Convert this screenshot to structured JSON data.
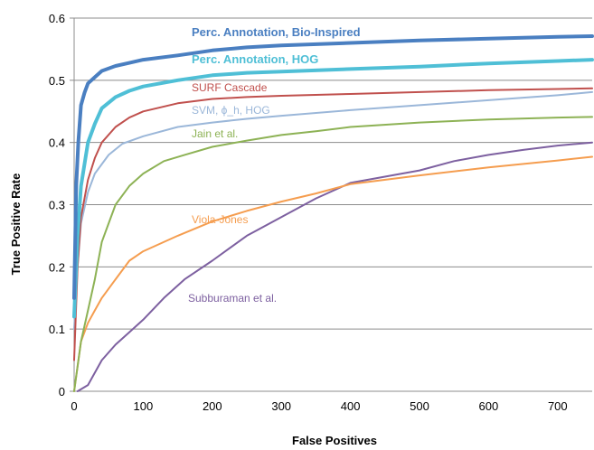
{
  "chart_data": {
    "type": "line",
    "title": "",
    "xlabel": "False Positives",
    "ylabel": "True Positive Rate",
    "xlim": [
      0,
      750
    ],
    "ylim": [
      0,
      0.6
    ],
    "x_ticks": [
      "0",
      "100",
      "200",
      "300",
      "400",
      "500",
      "600",
      "700"
    ],
    "y_ticks": [
      "0",
      "0.1",
      "0.2",
      "0.3",
      "0.4",
      "0.5",
      "0.6"
    ],
    "grid": "horizontal",
    "legend": "inline",
    "series": [
      {
        "name": "Perc. Annotation, Bio-Inspired",
        "color": "#4a7fc1",
        "points": [
          [
            0,
            0.15
          ],
          [
            3,
            0.33
          ],
          [
            6,
            0.4
          ],
          [
            10,
            0.46
          ],
          [
            15,
            0.48
          ],
          [
            20,
            0.495
          ],
          [
            30,
            0.505
          ],
          [
            40,
            0.515
          ],
          [
            60,
            0.523
          ],
          [
            80,
            0.528
          ],
          [
            100,
            0.533
          ],
          [
            150,
            0.54
          ],
          [
            200,
            0.548
          ],
          [
            250,
            0.553
          ],
          [
            300,
            0.556
          ],
          [
            400,
            0.56
          ],
          [
            500,
            0.564
          ],
          [
            600,
            0.567
          ],
          [
            700,
            0.57
          ],
          [
            750,
            0.571
          ]
        ]
      },
      {
        "name": "Perc. Annotation, HOG",
        "color": "#4fbfd6",
        "points": [
          [
            0,
            0.12
          ],
          [
            5,
            0.25
          ],
          [
            10,
            0.33
          ],
          [
            20,
            0.4
          ],
          [
            30,
            0.43
          ],
          [
            40,
            0.455
          ],
          [
            60,
            0.473
          ],
          [
            80,
            0.483
          ],
          [
            100,
            0.49
          ],
          [
            150,
            0.5
          ],
          [
            200,
            0.508
          ],
          [
            250,
            0.512
          ],
          [
            300,
            0.514
          ],
          [
            400,
            0.518
          ],
          [
            500,
            0.522
          ],
          [
            600,
            0.527
          ],
          [
            700,
            0.531
          ],
          [
            750,
            0.533
          ]
        ]
      },
      {
        "name": "SURF Cascade",
        "color": "#c0504d",
        "points": [
          [
            0,
            0.05
          ],
          [
            5,
            0.2
          ],
          [
            10,
            0.28
          ],
          [
            20,
            0.34
          ],
          [
            30,
            0.375
          ],
          [
            40,
            0.4
          ],
          [
            60,
            0.425
          ],
          [
            80,
            0.44
          ],
          [
            100,
            0.45
          ],
          [
            150,
            0.463
          ],
          [
            200,
            0.47
          ],
          [
            250,
            0.473
          ],
          [
            300,
            0.475
          ],
          [
            400,
            0.478
          ],
          [
            500,
            0.481
          ],
          [
            600,
            0.484
          ],
          [
            700,
            0.486
          ],
          [
            750,
            0.487
          ]
        ]
      },
      {
        "name": "SVM, ϕ_h, HOG",
        "color": "#9bb7d9",
        "points": [
          [
            0,
            0.1
          ],
          [
            5,
            0.2
          ],
          [
            10,
            0.27
          ],
          [
            20,
            0.32
          ],
          [
            30,
            0.35
          ],
          [
            50,
            0.38
          ],
          [
            70,
            0.398
          ],
          [
            100,
            0.41
          ],
          [
            150,
            0.425
          ],
          [
            200,
            0.432
          ],
          [
            250,
            0.438
          ],
          [
            300,
            0.443
          ],
          [
            400,
            0.452
          ],
          [
            500,
            0.46
          ],
          [
            600,
            0.468
          ],
          [
            700,
            0.476
          ],
          [
            750,
            0.481
          ]
        ]
      },
      {
        "name": "Jain et al.",
        "color": "#8db255",
        "points": [
          [
            0,
            0.0
          ],
          [
            10,
            0.08
          ],
          [
            20,
            0.13
          ],
          [
            30,
            0.18
          ],
          [
            40,
            0.24
          ],
          [
            50,
            0.27
          ],
          [
            60,
            0.3
          ],
          [
            80,
            0.33
          ],
          [
            100,
            0.35
          ],
          [
            130,
            0.37
          ],
          [
            160,
            0.38
          ],
          [
            200,
            0.393
          ],
          [
            250,
            0.403
          ],
          [
            300,
            0.412
          ],
          [
            350,
            0.418
          ],
          [
            400,
            0.425
          ],
          [
            500,
            0.432
          ],
          [
            600,
            0.437
          ],
          [
            700,
            0.44
          ],
          [
            750,
            0.441
          ]
        ]
      },
      {
        "name": "Viola-Jones",
        "color": "#f59d4f",
        "points": [
          [
            0,
            0.0
          ],
          [
            5,
            0.04
          ],
          [
            10,
            0.08
          ],
          [
            20,
            0.11
          ],
          [
            30,
            0.13
          ],
          [
            40,
            0.15
          ],
          [
            60,
            0.18
          ],
          [
            80,
            0.21
          ],
          [
            100,
            0.225
          ],
          [
            150,
            0.25
          ],
          [
            200,
            0.273
          ],
          [
            250,
            0.29
          ],
          [
            300,
            0.305
          ],
          [
            350,
            0.318
          ],
          [
            400,
            0.333
          ],
          [
            500,
            0.347
          ],
          [
            600,
            0.36
          ],
          [
            700,
            0.371
          ],
          [
            750,
            0.377
          ]
        ]
      },
      {
        "name": "Subburaman et al.",
        "color": "#7d60a0",
        "points": [
          [
            5,
            0.0
          ],
          [
            20,
            0.01
          ],
          [
            40,
            0.05
          ],
          [
            60,
            0.075
          ],
          [
            80,
            0.095
          ],
          [
            100,
            0.115
          ],
          [
            130,
            0.15
          ],
          [
            160,
            0.18
          ],
          [
            200,
            0.21
          ],
          [
            250,
            0.25
          ],
          [
            300,
            0.28
          ],
          [
            350,
            0.31
          ],
          [
            400,
            0.335
          ],
          [
            450,
            0.345
          ],
          [
            500,
            0.355
          ],
          [
            550,
            0.37
          ],
          [
            600,
            0.38
          ],
          [
            650,
            0.388
          ],
          [
            700,
            0.395
          ],
          [
            750,
            0.4
          ]
        ]
      }
    ]
  }
}
